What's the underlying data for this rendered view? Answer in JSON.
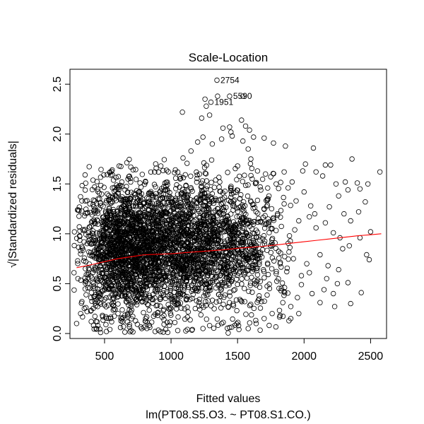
{
  "chart_data": {
    "type": "scatter",
    "title": "Scale-Location",
    "xlabel": "Fitted values",
    "ylabel": "√|Standardized residuals|",
    "subtitle": "lm(PT08.S5.O3. ~ PT08.S1.CO.)",
    "xlim": [
      240,
      2620
    ],
    "ylim": [
      -0.05,
      2.65
    ],
    "xticks": [
      500,
      1000,
      1500,
      2000,
      2500
    ],
    "yticks": [
      0.0,
      0.5,
      1.0,
      1.5,
      2.0,
      2.5
    ],
    "xtick_labels": [
      "500",
      "1000",
      "1500",
      "2000",
      "2500"
    ],
    "ytick_labels": [
      "0.0",
      "0.5",
      "1.0",
      "1.5",
      "2.0",
      "2.5"
    ],
    "point_color": "#000000",
    "smooth_color": "#ff0000",
    "grid": false,
    "smooth_line": {
      "x": [
        290,
        400,
        500,
        600,
        700,
        800,
        900,
        1000,
        1100,
        1200,
        1300,
        1400,
        1500,
        1600,
        1700,
        1800,
        1900,
        2000,
        2100,
        2200,
        2300,
        2400,
        2500,
        2580
      ],
      "y": [
        0.66,
        0.69,
        0.72,
        0.75,
        0.77,
        0.79,
        0.795,
        0.8,
        0.81,
        0.82,
        0.83,
        0.84,
        0.855,
        0.865,
        0.875,
        0.89,
        0.905,
        0.92,
        0.935,
        0.95,
        0.965,
        0.98,
        0.99,
        1.0
      ]
    },
    "labeled_points": [
      {
        "label": "2754",
        "x": 1345,
        "y": 2.54
      },
      {
        "label": "5590",
        "x": 1440,
        "y": 2.38
      },
      {
        "label": "1951",
        "x": 1300,
        "y": 2.32
      }
    ],
    "points": [
      [
        1345,
        2.54
      ],
      [
        1440,
        2.38
      ],
      [
        1300,
        2.32
      ],
      [
        1540,
        2.38
      ],
      [
        1255,
        2.35
      ],
      [
        1265,
        2.28
      ],
      [
        1350,
        2.38
      ],
      [
        1085,
        2.22
      ],
      [
        1530,
        2.14
      ],
      [
        1560,
        2.08
      ],
      [
        1390,
        2.06
      ],
      [
        1440,
        2.07
      ],
      [
        1230,
        2.16
      ],
      [
        1290,
        2.19
      ],
      [
        1450,
        2.02
      ],
      [
        1590,
        2.04
      ],
      [
        1620,
        1.97
      ],
      [
        1700,
        1.96
      ],
      [
        1770,
        1.91
      ],
      [
        1860,
        1.88
      ],
      [
        2070,
        1.86
      ],
      [
        2360,
        1.75
      ],
      [
        2010,
        1.7
      ],
      [
        2160,
        1.69
      ],
      [
        2200,
        1.69
      ],
      [
        2570,
        1.62
      ],
      [
        1990,
        1.63
      ],
      [
        2090,
        1.62
      ],
      [
        2240,
        1.5
      ],
      [
        2140,
        1.58
      ],
      [
        2310,
        1.52
      ],
      [
        2400,
        1.51
      ],
      [
        2480,
        1.5
      ],
      [
        2420,
        1.45
      ],
      [
        2330,
        1.44
      ],
      [
        2260,
        1.38
      ],
      [
        2460,
        1.32
      ],
      [
        2190,
        1.27
      ],
      [
        2410,
        1.22
      ],
      [
        2300,
        1.2
      ],
      [
        2350,
        1.13
      ],
      [
        2160,
        1.11
      ],
      [
        2090,
        1.06
      ],
      [
        2500,
        1.02
      ],
      [
        2220,
        1.01
      ],
      [
        2420,
        0.96
      ],
      [
        2270,
        0.96
      ],
      [
        2340,
        0.88
      ],
      [
        2290,
        0.85
      ],
      [
        2470,
        0.79
      ],
      [
        2490,
        0.74
      ],
      [
        2120,
        0.79
      ],
      [
        2180,
        0.68
      ],
      [
        2260,
        0.64
      ],
      [
        2040,
        0.61
      ],
      [
        2170,
        0.55
      ],
      [
        2250,
        0.5
      ],
      [
        2330,
        0.51
      ],
      [
        2150,
        0.44
      ],
      [
        2220,
        0.4
      ],
      [
        2430,
        0.41
      ],
      [
        2350,
        0.3
      ],
      [
        2230,
        0.27
      ],
      [
        2120,
        0.31
      ],
      [
        2060,
        0.4
      ],
      [
        1980,
        0.49
      ],
      [
        1950,
        0.36
      ],
      [
        1900,
        0.27
      ],
      [
        1840,
        0.31
      ],
      [
        1900,
        0.15
      ],
      [
        1960,
        0.2
      ],
      [
        1850,
        0.42
      ],
      [
        2020,
        0.7
      ],
      [
        1920,
        0.75
      ],
      [
        1870,
        0.62
      ],
      [
        1820,
        0.7
      ],
      [
        1790,
        0.6
      ],
      [
        1980,
        0.58
      ],
      [
        1890,
        0.98
      ],
      [
        1930,
        1.04
      ],
      [
        1960,
        1.13
      ],
      [
        2040,
        1.17
      ],
      [
        2080,
        1.2
      ],
      [
        1940,
        1.33
      ],
      [
        1880,
        1.46
      ],
      [
        1910,
        1.52
      ],
      [
        2000,
        1.42
      ],
      [
        2050,
        1.28
      ],
      [
        1850,
        1.3
      ],
      [
        1790,
        1.5
      ],
      [
        1710,
        1.6
      ],
      [
        1650,
        1.63
      ],
      [
        1850,
        1.62
      ],
      [
        1600,
        1.75
      ],
      [
        1580,
        1.85
      ],
      [
        1540,
        1.93
      ],
      [
        1460,
        1.98
      ],
      [
        1380,
        1.95
      ],
      [
        1310,
        1.9
      ],
      [
        1240,
        1.97
      ],
      [
        1200,
        1.92
      ],
      [
        1150,
        1.83
      ],
      [
        1090,
        1.76
      ],
      [
        610,
        1.68
      ],
      [
        630,
        1.52
      ],
      [
        560,
        1.46
      ],
      [
        520,
        1.4
      ],
      [
        470,
        1.31
      ],
      [
        420,
        1.27
      ],
      [
        390,
        1.3
      ],
      [
        330,
        1.33
      ],
      [
        350,
        1.18
      ],
      [
        310,
        1.07
      ],
      [
        330,
        0.87
      ],
      [
        300,
        0.55
      ],
      [
        330,
        0.32
      ],
      [
        290,
        0.1
      ],
      [
        320,
        0.2
      ],
      [
        360,
        0.26
      ],
      [
        400,
        0.12
      ],
      [
        450,
        0.08
      ],
      [
        470,
        0.01
      ],
      [
        540,
        0.04
      ],
      [
        620,
        0.06
      ],
      [
        700,
        0.03
      ],
      [
        780,
        0.05
      ],
      [
        880,
        0.02
      ],
      [
        960,
        0.04
      ],
      [
        1050,
        0.03
      ],
      [
        1160,
        0.04
      ],
      [
        1240,
        0.05
      ],
      [
        1290,
        0.08
      ],
      [
        1380,
        0.1
      ],
      [
        1440,
        0.06
      ],
      [
        1510,
        0.04
      ],
      [
        1580,
        0.05
      ],
      [
        1640,
        0.1
      ],
      [
        1700,
        0.15
      ],
      [
        1760,
        0.2
      ],
      [
        1820,
        0.18
      ],
      [
        1680,
        0.32
      ],
      [
        1740,
        0.45
      ],
      [
        1620,
        0.8
      ],
      [
        1690,
        0.95
      ],
      [
        1760,
        1.05
      ],
      [
        1800,
        1.2
      ],
      [
        1730,
        1.35
      ],
      [
        1670,
        1.47
      ],
      [
        1610,
        1.55
      ],
      [
        1500,
        1.68
      ]
    ],
    "density_clusters": [
      {
        "cx": 800,
        "cy": 0.85,
        "sx": 280,
        "sy": 0.33,
        "n": 1500
      },
      {
        "cx": 1080,
        "cy": 0.9,
        "sx": 260,
        "sy": 0.34,
        "n": 1000
      },
      {
        "cx": 600,
        "cy": 0.8,
        "sx": 120,
        "sy": 0.32,
        "n": 600
      },
      {
        "cx": 1400,
        "cy": 0.9,
        "sx": 190,
        "sy": 0.34,
        "n": 450
      },
      {
        "cx": 1650,
        "cy": 0.85,
        "sx": 170,
        "sy": 0.34,
        "n": 180
      }
    ]
  }
}
